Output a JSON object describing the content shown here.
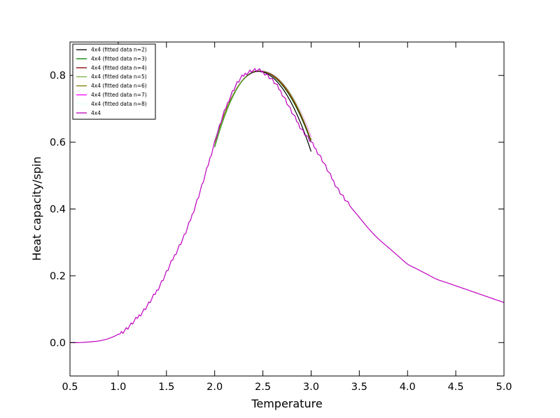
{
  "chart_data": {
    "type": "line",
    "title": "",
    "xlabel": "Temperature",
    "ylabel": "Heat capacity/spin",
    "xlim": [
      0.5,
      5.0
    ],
    "ylim": [
      -0.1,
      0.9
    ],
    "xticks": [
      0.5,
      1.0,
      1.5,
      2.0,
      2.5,
      3.0,
      3.5,
      4.0,
      4.5,
      5.0
    ],
    "xtick_labels": [
      "0.5",
      "1.0",
      "1.5",
      "2.0",
      "2.5",
      "3.0",
      "3.5",
      "4.0",
      "4.5",
      "5.0"
    ],
    "yticks": [
      0.0,
      0.2,
      0.4,
      0.6,
      0.8
    ],
    "ytick_labels": [
      "0.0",
      "0.2",
      "0.4",
      "0.6",
      "0.8"
    ],
    "grid": false,
    "legend_position": "top-left",
    "series": [
      {
        "name": "4x4 (fitted data n=2)",
        "color": "#000000",
        "fit": {
          "degree": 2,
          "x_range": [
            2.0,
            3.0
          ],
          "peak_x": 2.45,
          "peak_y": 0.812,
          "end_values": [
            0.6,
            0.572
          ]
        }
      },
      {
        "name": "4x4 (fitted data n=3)",
        "color": "#008000",
        "fit": {
          "degree": 3,
          "x_range": [
            2.0,
            3.0
          ],
          "peak_x": 2.45,
          "peak_y": 0.814,
          "end_values": [
            0.585,
            0.6
          ]
        }
      },
      {
        "name": "4x4 (fitted data n=4)",
        "color": "#8b0000",
        "fit": {
          "degree": 4,
          "x_range": [
            2.0,
            3.0
          ],
          "peak_x": 2.45,
          "peak_y": 0.814,
          "end_values": [
            0.6,
            0.605
          ]
        }
      },
      {
        "name": "4x4 (fitted data n=5)",
        "color": "#7cb342",
        "fit": {
          "degree": 5,
          "x_range": [
            2.0,
            3.0
          ],
          "peak_x": 2.45,
          "peak_y": 0.815,
          "end_values": [
            0.59,
            0.61
          ]
        }
      },
      {
        "name": "4x4 (fitted data n=6)",
        "color": "#808000",
        "fit": {
          "degree": 6,
          "x_range": [
            2.0,
            3.0
          ],
          "peak_x": 2.45,
          "peak_y": 0.815,
          "end_values": [
            0.6,
            0.61
          ]
        }
      },
      {
        "name": "4x4 (fitted data n=7)",
        "color": "#ff00ff",
        "fit": {
          "degree": 7,
          "x_range": [
            2.0,
            3.0
          ],
          "peak_x": 2.45,
          "peak_y": 0.816,
          "end_values": [
            0.61,
            0.615
          ]
        }
      },
      {
        "name": "4x4 (fitted data n=8)",
        "color": "#e0ffff",
        "fit": {
          "degree": 8,
          "x_range": [
            2.0,
            3.0
          ],
          "peak_x": 2.45,
          "peak_y": 0.816,
          "end_values": [
            0.61,
            0.612
          ]
        }
      },
      {
        "name": "4x4",
        "color": "#bf00bf",
        "x": [
          0.5,
          0.6,
          0.7,
          0.8,
          0.9,
          1.0,
          1.1,
          1.2,
          1.3,
          1.4,
          1.5,
          1.6,
          1.7,
          1.8,
          1.9,
          2.0,
          2.1,
          2.2,
          2.3,
          2.4,
          2.5,
          2.6,
          2.7,
          2.8,
          2.9,
          3.0,
          3.1,
          3.2,
          3.3,
          3.4,
          3.5,
          3.6,
          3.7,
          3.8,
          3.9,
          4.0,
          4.1,
          4.2,
          4.3,
          4.4,
          4.5,
          4.6,
          4.7,
          4.8,
          4.9,
          5.0
        ],
        "y": [
          0.0,
          0.0,
          0.002,
          0.005,
          0.012,
          0.025,
          0.045,
          0.075,
          0.11,
          0.155,
          0.21,
          0.27,
          0.33,
          0.41,
          0.5,
          0.6,
          0.69,
          0.76,
          0.8,
          0.815,
          0.81,
          0.785,
          0.745,
          0.69,
          0.64,
          0.6,
          0.555,
          0.5,
          0.45,
          0.41,
          0.375,
          0.34,
          0.31,
          0.285,
          0.26,
          0.235,
          0.22,
          0.205,
          0.19,
          0.18,
          0.17,
          0.16,
          0.15,
          0.14,
          0.13,
          0.12
        ]
      }
    ]
  }
}
